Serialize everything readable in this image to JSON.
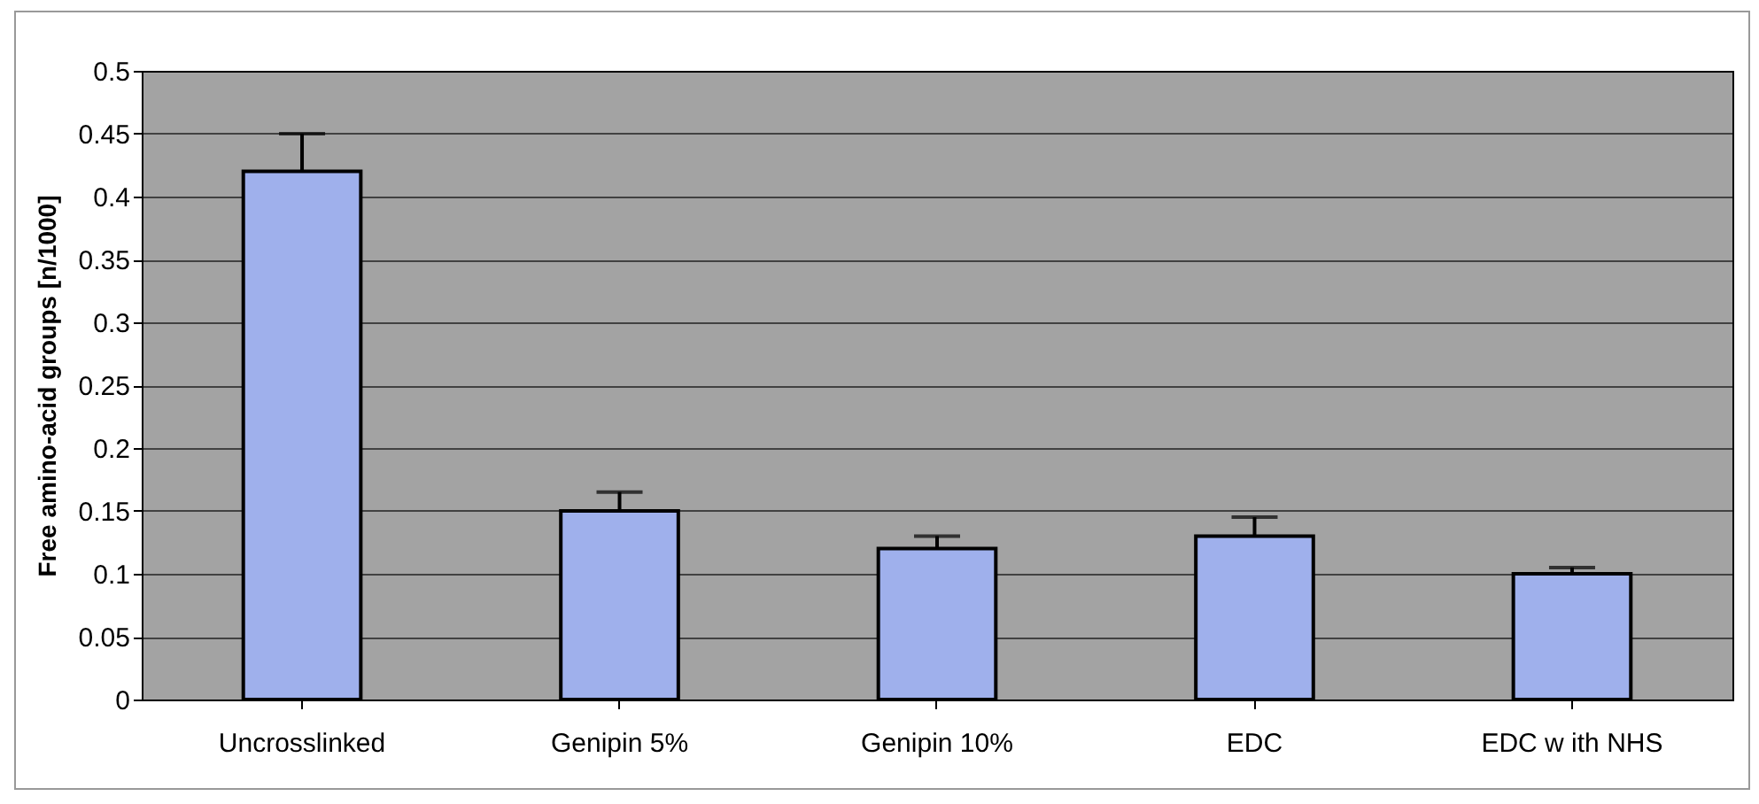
{
  "chart_data": {
    "type": "bar",
    "ylabel": "Free amino-acid groups [n/1000]",
    "categories": [
      "Uncrosslinked",
      "Genipin 5%",
      "Genipin 10%",
      "EDC",
      "EDC w ith NHS"
    ],
    "values": [
      0.42,
      0.15,
      0.12,
      0.13,
      0.1
    ],
    "errors": [
      [
        0.42,
        0.45
      ],
      [
        0.15,
        0.165
      ],
      [
        0.12,
        0.13
      ],
      [
        0.13,
        0.145
      ],
      [
        0.1,
        0.105
      ]
    ],
    "color": "#9fb0ec",
    "ylim": [
      0,
      0.5
    ],
    "yticks": [
      0,
      0.05,
      0.1,
      0.15,
      0.2,
      0.25,
      0.3,
      0.35,
      0.4,
      0.45,
      0.5
    ],
    "grid": "y"
  }
}
